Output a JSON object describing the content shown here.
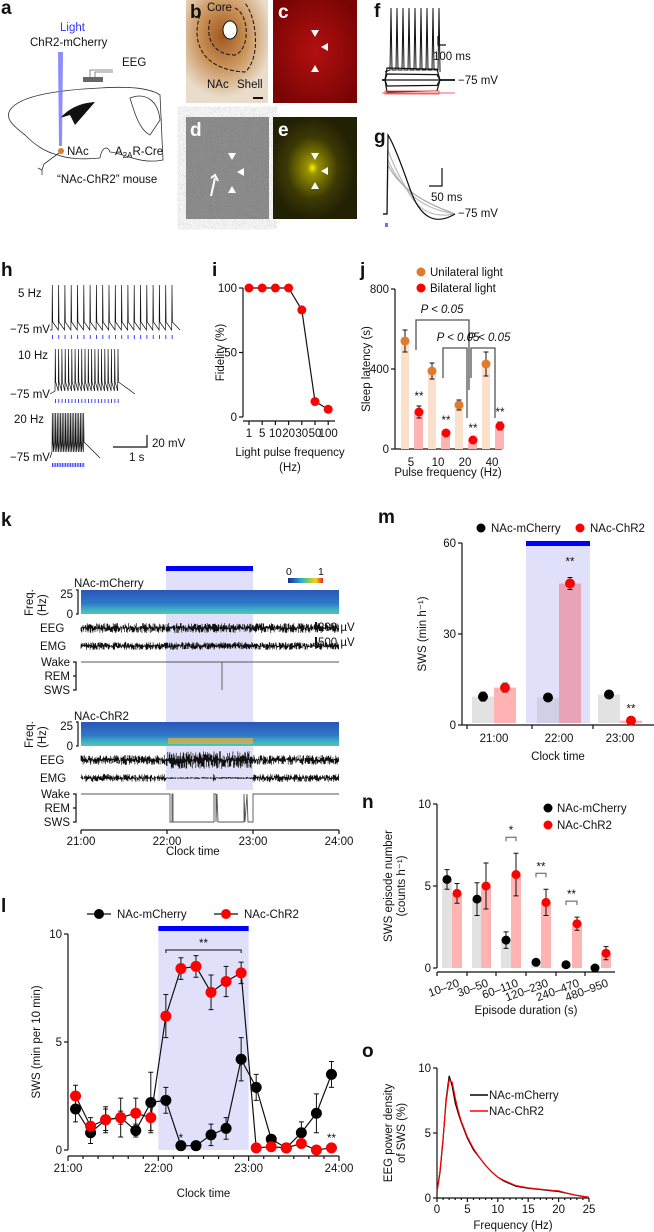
{
  "panel_labels": {
    "a": "a",
    "b": "b",
    "c": "c",
    "d": "d",
    "e": "e",
    "f": "f",
    "g": "g",
    "h": "h",
    "i": "i",
    "j": "j",
    "k": "k",
    "l": "l",
    "m": "m",
    "n": "n",
    "o": "o"
  },
  "panel_a": {
    "light": "Light",
    "construct": "ChR2-mCherry",
    "eeg": "EEG",
    "nac": "NAc",
    "cre_prefix": "A",
    "cre_sub": "2A",
    "cre_suffix": "R-Cre",
    "mouse": "“NAc-ChR2” mouse"
  },
  "panel_b": {
    "core": "Core",
    "nac": "NAc",
    "shell": "Shell"
  },
  "panel_f": {
    "scale": "100 ms",
    "vm": "−75 mV"
  },
  "panel_g": {
    "scale": "50 ms",
    "vm": "−75 mV"
  },
  "panel_h": {
    "rows": [
      {
        "freq": "5 Hz",
        "vm": "−75 mV"
      },
      {
        "freq": "10 Hz",
        "vm": "−75 mV"
      },
      {
        "freq": "20 Hz",
        "vm": "−75 mV"
      }
    ],
    "scale_v": "20 mV",
    "scale_t": "1 s"
  },
  "panel_k": {
    "group1": "NAc-mCherry",
    "group2": "NAc-ChR2",
    "freq_label1": "Freq.",
    "freq_label2": "(Hz)",
    "freq_max": "25",
    "freq_min": "0",
    "eeg": "EEG",
    "emg": "EMG",
    "wake": "Wake",
    "rem": "REM",
    "sws": "SWS",
    "eeg_scale": "200 µV",
    "emg_scale": "500 µV",
    "colorbar_min": "0",
    "colorbar_max": "1",
    "xticks": [
      "21:00",
      "22:00",
      "23:00",
      "24:00"
    ],
    "xlabel": "Clock time"
  },
  "colors": {
    "mcherry": "#000000",
    "chr2": "#ff0000",
    "unilateral": "#e07b2e",
    "bilateral": "#ff0000",
    "light": "#0000ff",
    "shade": "#e0e0fa"
  },
  "chart_data": [
    {
      "id": "i",
      "type": "line",
      "xlabel": "Light pulse frequency",
      "xlabel2": "(Hz)",
      "ylabel": "Fidelity (%)",
      "categories": [
        "1",
        "5",
        "10",
        "20",
        "30",
        "50",
        "100"
      ],
      "values": [
        100,
        100,
        100,
        100,
        83,
        12,
        6
      ],
      "ylim": [
        0,
        100
      ],
      "yticks": [
        0,
        50,
        100
      ]
    },
    {
      "id": "j",
      "type": "bar",
      "xlabel": "Pulse frequency (Hz)",
      "ylabel": "Sleep latency (s)",
      "ylim": [
        0,
        800
      ],
      "yticks": [
        0,
        400,
        800
      ],
      "categories": [
        "5",
        "10",
        "20",
        "40"
      ],
      "series": [
        {
          "name": "Unilateral light",
          "values": [
            540,
            390,
            220,
            425
          ],
          "sem": [
            55,
            40,
            25,
            60
          ]
        },
        {
          "name": "Bilateral light",
          "values": [
            185,
            80,
            45,
            115
          ],
          "sem": [
            30,
            15,
            10,
            20
          ]
        }
      ],
      "significance": [
        "**",
        "**",
        "**",
        "**"
      ],
      "comparisons": [
        {
          "label": "P < 0.05",
          "between": [
            "5",
            "20"
          ]
        },
        {
          "label": "P < 0.05",
          "between": [
            "10",
            "20"
          ]
        },
        {
          "label": "P < 0.05",
          "between": [
            "20",
            "40"
          ]
        }
      ]
    },
    {
      "id": "l",
      "type": "line",
      "xlabel": "Clock time",
      "ylabel": "SWS (min per 10 min)",
      "ylim": [
        0,
        10
      ],
      "yticks": [
        0,
        5,
        10
      ],
      "xticks": [
        "21:00",
        "22:00",
        "23:00",
        "24:00"
      ],
      "light_on": [
        "22:00",
        "23:00"
      ],
      "x_minutes_after_2100": [
        5,
        15,
        25,
        35,
        45,
        55,
        65,
        75,
        85,
        95,
        105,
        115,
        125,
        135,
        145,
        155,
        165,
        175
      ],
      "series": [
        {
          "name": "NAc-mCherry",
          "values": [
            1.9,
            0.8,
            1.4,
            1.5,
            0.9,
            2.2,
            2.3,
            0.2,
            0.2,
            0.7,
            1.0,
            4.2,
            2.9,
            0.5,
            0.1,
            0.8,
            1.7,
            3.5
          ],
          "sem": [
            0.6,
            0.5,
            0.6,
            0.9,
            0.3,
            1.4,
            0.6,
            0.1,
            0.1,
            0.5,
            0.5,
            1.0,
            0.6,
            0.2,
            0.1,
            0.5,
            0.9,
            0.6
          ]
        },
        {
          "name": "NAc-ChR2",
          "values": [
            2.5,
            1.1,
            1.4,
            1.5,
            1.7,
            1.5,
            6.2,
            8.4,
            8.5,
            7.3,
            7.8,
            8.2,
            0.1,
            0.15,
            0.1,
            0.3,
            0.0,
            0.1
          ],
          "sem": [
            0.5,
            0.4,
            0.5,
            0.3,
            0.7,
            0.6,
            1.0,
            0.5,
            0.5,
            0.8,
            0.7,
            0.5,
            0,
            0.05,
            0,
            0.1,
            0,
            0.05
          ]
        }
      ],
      "annotations": [
        {
          "text": "**",
          "span": [
            "22:05",
            "22:55"
          ]
        },
        {
          "text": "*",
          "at": "23:15"
        },
        {
          "text": "**",
          "at": "23:55"
        }
      ]
    },
    {
      "id": "m",
      "type": "bar",
      "xlabel": "Clock time",
      "ylabel": "SWS (min h⁻¹)",
      "ylim": [
        0,
        60
      ],
      "yticks": [
        0,
        30,
        60
      ],
      "categories": [
        "21:00",
        "22:00",
        "23:00"
      ],
      "light_on": "22:00",
      "series": [
        {
          "name": "NAc-mCherry",
          "values": [
            8.8,
            8.5,
            9.5
          ],
          "sem": [
            1.5,
            1.0,
            1.0
          ]
        },
        {
          "name": "NAc-ChR2",
          "values": [
            11.8,
            46.5,
            0.8
          ],
          "sem": [
            1.5,
            2.0,
            0.5
          ]
        }
      ],
      "significance": [
        "",
        "**",
        "**"
      ]
    },
    {
      "id": "n",
      "type": "bar",
      "xlabel": "Episode duration (s)",
      "ylabel": "SWS episode number",
      "ylabel2": "(counts h⁻¹)",
      "ylim": [
        0,
        10
      ],
      "yticks": [
        0,
        5,
        10
      ],
      "categories": [
        "10–20",
        "30–50",
        "60–110",
        "120–230",
        "240–470",
        "480–950"
      ],
      "series": [
        {
          "name": "NAc-mCherry",
          "values": [
            5.4,
            4.2,
            1.7,
            0.35,
            0.2,
            0.0
          ],
          "sem": [
            0.6,
            1.0,
            0.5,
            0.1,
            0.1,
            0
          ]
        },
        {
          "name": "NAc-ChR2",
          "values": [
            4.55,
            5.0,
            5.7,
            4.0,
            2.7,
            0.9
          ],
          "sem": [
            0.6,
            1.4,
            1.3,
            0.8,
            0.4,
            0.4
          ]
        }
      ],
      "significance": [
        "",
        "",
        "*",
        "**",
        "**",
        ""
      ]
    },
    {
      "id": "o",
      "type": "line",
      "xlabel": "Frequency (Hz)",
      "ylabel": "EEG power density",
      "ylabel2": "of SWS (%)",
      "ylim": [
        0,
        10
      ],
      "yticks": [
        0,
        5,
        10
      ],
      "xlim": [
        0,
        25
      ],
      "xticks": [
        0,
        5,
        10,
        15,
        20,
        25
      ],
      "x": [
        0,
        0.5,
        1,
        1.5,
        2,
        2.5,
        3,
        3.5,
        4,
        5,
        6,
        7,
        8,
        9,
        10,
        11,
        12,
        13,
        15,
        17,
        19,
        20,
        21,
        23,
        25
      ],
      "series": [
        {
          "name": "NAc-mCherry",
          "values": [
            0.5,
            2.0,
            4.5,
            7.6,
            9.4,
            8.6,
            7.3,
            6.5,
            5.8,
            4.6,
            3.7,
            3.1,
            2.5,
            2.0,
            1.6,
            1.3,
            1.1,
            0.9,
            0.75,
            0.65,
            0.55,
            0.5,
            0.4,
            0.2,
            0.05
          ]
        },
        {
          "name": "NAc-ChR2",
          "values": [
            0.5,
            2.1,
            4.6,
            7.4,
            9.1,
            8.9,
            7.7,
            6.7,
            5.9,
            4.7,
            3.8,
            3.1,
            2.5,
            2.0,
            1.6,
            1.35,
            1.15,
            0.95,
            0.78,
            0.68,
            0.58,
            0.55,
            0.42,
            0.2,
            0.05
          ]
        }
      ]
    }
  ]
}
